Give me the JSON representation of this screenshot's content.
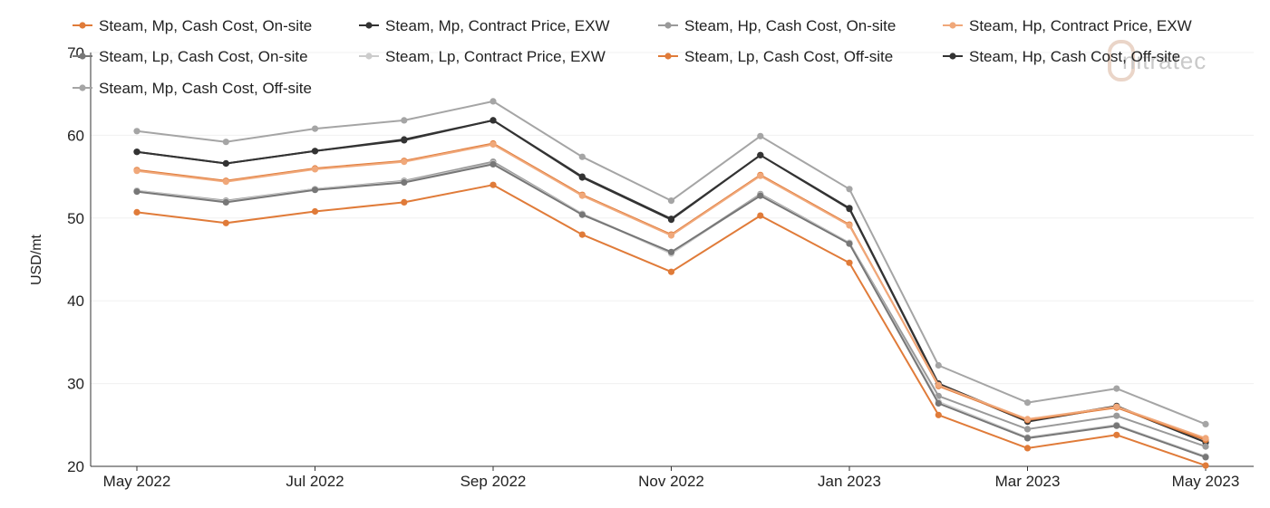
{
  "logo_text": "nitratec",
  "chart_data": {
    "type": "line",
    "ylabel": "USD/mt",
    "xlabel": "",
    "ylim": [
      20,
      70
    ],
    "yticks": [
      20,
      30,
      40,
      50,
      60,
      70
    ],
    "grid": true,
    "legend_position": "top",
    "x": [
      "May 2022",
      "Jun 2022",
      "Jul 2022",
      "Aug 2022",
      "Sep 2022",
      "Oct 2022",
      "Nov 2022",
      "Dec 2022",
      "Jan 2023",
      "Feb 2023",
      "Mar 2023",
      "Apr 2023",
      "May 2023"
    ],
    "xtick_labels": [
      "May 2022",
      "Jul 2022",
      "Sep 2022",
      "Nov 2022",
      "Jan 2023",
      "Mar 2023",
      "May 2023"
    ],
    "series": [
      {
        "name": "Steam, Mp, Cash Cost, On-site",
        "color": "#e07b39",
        "values": [
          55.8,
          54.5,
          56.0,
          56.9,
          59.0,
          52.8,
          48.0,
          55.2,
          49.2,
          29.7,
          25.6,
          27.1,
          23.2
        ]
      },
      {
        "name": "Steam, Mp, Contract Price, EXW",
        "color": "#333333",
        "values": [
          58.0,
          56.6,
          58.1,
          59.4,
          61.8,
          54.9,
          49.8,
          57.6,
          51.1,
          29.9,
          25.4,
          27.2,
          22.9
        ]
      },
      {
        "name": "Steam, Hp, Cash Cost, On-site",
        "color": "#9a9a9a",
        "values": [
          53.3,
          52.1,
          53.5,
          54.5,
          56.8,
          50.5,
          45.8,
          52.9,
          47.0,
          28.5,
          24.5,
          26.1,
          22.4
        ]
      },
      {
        "name": "Steam, Hp, Contract Price, EXW",
        "color": "#f0a87a",
        "values": [
          55.7,
          54.4,
          55.9,
          56.8,
          58.9,
          52.7,
          47.9,
          55.1,
          49.1,
          29.8,
          25.7,
          27.2,
          23.4
        ]
      },
      {
        "name": "Steam, Lp, Cash Cost, On-site",
        "color": "#777777",
        "values": [
          53.2,
          51.9,
          53.4,
          54.3,
          56.5,
          50.4,
          45.9,
          52.7,
          46.9,
          27.6,
          23.4,
          24.9,
          21.1
        ]
      },
      {
        "name": "Steam, Lp, Contract Price, EXW",
        "color": "#cccccc",
        "values": [
          53.3,
          52.0,
          53.5,
          54.4,
          56.6,
          50.5,
          45.7,
          52.8,
          47.0,
          27.8,
          23.5,
          25.0,
          21.2
        ]
      },
      {
        "name": "Steam, Lp, Cash Cost, Off-site",
        "color": "#e07b39",
        "values": [
          50.7,
          49.4,
          50.8,
          51.9,
          54.0,
          48.0,
          43.5,
          50.3,
          44.6,
          26.2,
          22.2,
          23.8,
          20.1
        ]
      },
      {
        "name": "Steam, Hp, Cash Cost, Off-site",
        "color": "#333333",
        "values": [
          58.0,
          56.6,
          58.1,
          59.5,
          61.8,
          55.0,
          49.9,
          57.6,
          51.2,
          30.0,
          25.5,
          27.3,
          22.9
        ]
      },
      {
        "name": "Steam, Mp, Cash Cost, Off-site",
        "color": "#a5a5a5",
        "values": [
          60.5,
          59.2,
          60.8,
          61.8,
          64.1,
          57.4,
          52.1,
          59.9,
          53.5,
          32.2,
          27.7,
          29.4,
          25.1
        ]
      }
    ]
  }
}
